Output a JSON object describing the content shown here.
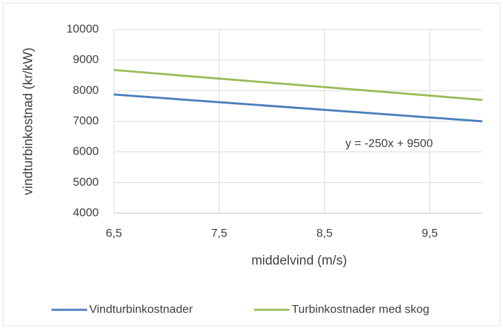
{
  "chart_data": {
    "type": "line",
    "xlabel": "middelvind (m/s)",
    "ylabel": "vindturbinkostnad (kr/kW)",
    "annotation": "y = -250x + 9500",
    "x": [
      6.5,
      10
    ],
    "series": [
      {
        "name": "Vindturbinkostnader",
        "color": "#4a7ebb",
        "values": [
          7875,
          7000
        ]
      },
      {
        "name": "Turbinkostnader med skog",
        "color": "#9bbb59",
        "values": [
          8675,
          7700
        ]
      }
    ],
    "xlim": [
      6.5,
      10
    ],
    "xticks": [
      {
        "value": 6.5,
        "label": "6,5"
      },
      {
        "value": 7.5,
        "label": "7,5"
      },
      {
        "value": 8.5,
        "label": "8,5"
      },
      {
        "value": 9.5,
        "label": "9,5"
      }
    ],
    "ylim": [
      4000,
      10000
    ],
    "yticks": [
      4000,
      5000,
      6000,
      7000,
      8000,
      9000,
      10000
    ],
    "grid": true,
    "legend": "bottom"
  }
}
